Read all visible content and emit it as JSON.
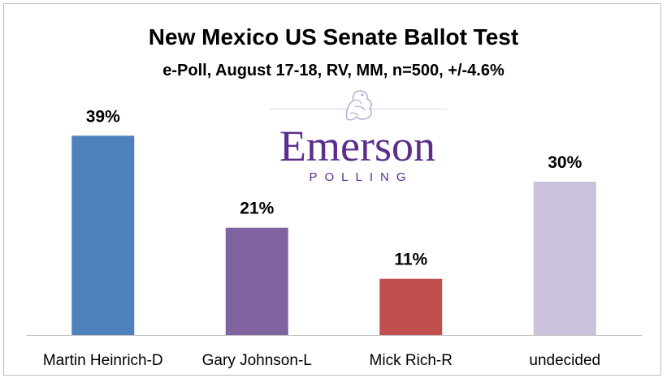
{
  "chart_data": {
    "type": "bar",
    "title": "New Mexico US Senate Ballot Test",
    "subtitle": "e-Poll, August 17-18, RV, MM, n=500, +/-4.6%",
    "categories": [
      "Martin Heinrich-D",
      "Gary Johnson-L",
      "Mick Rich-R",
      "undecided"
    ],
    "values": [
      39,
      21,
      11,
      30
    ],
    "data_labels": [
      "39%",
      "21%",
      "11%",
      "30%"
    ],
    "unit": "%",
    "colors": [
      "#4f81bd",
      "#8064a2",
      "#c0504d",
      "#ccc1da"
    ],
    "ylim": [
      0,
      45
    ],
    "grid": false,
    "legend": "none"
  },
  "logo": {
    "wordmark": "Emerson",
    "subtext": "POLLING",
    "icon": "lion-crest-icon",
    "color": "#5b2e8c"
  }
}
